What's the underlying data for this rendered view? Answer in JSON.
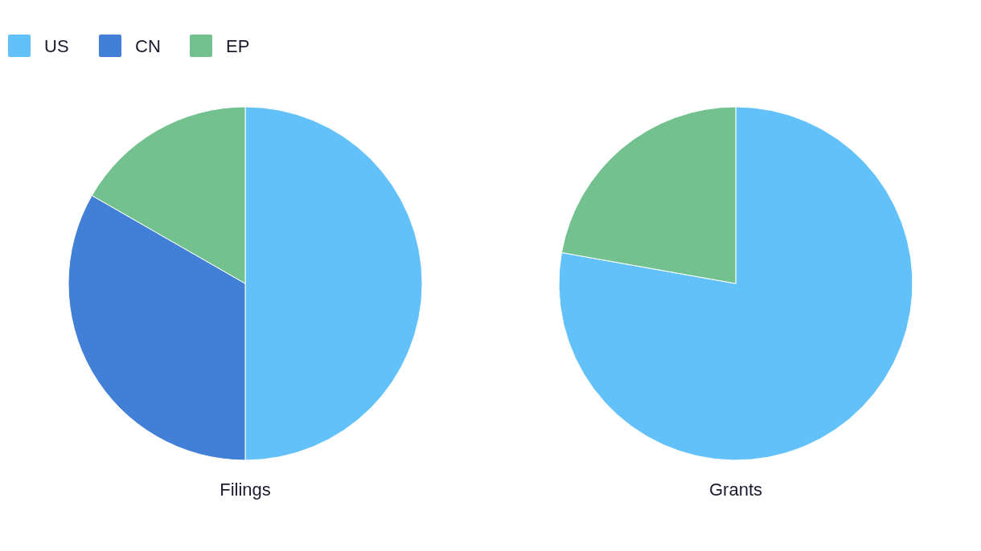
{
  "chart_data": [
    {
      "type": "pie",
      "title": "Filings",
      "categories": [
        "US",
        "CN",
        "EP"
      ],
      "values": [
        50,
        33.3,
        16.7
      ],
      "colors": [
        "#62c1f9",
        "#427fd6",
        "#73c18f"
      ],
      "legend": "top left"
    },
    {
      "type": "pie",
      "title": "Grants",
      "categories": [
        null,
        null
      ],
      "values": [
        77.8,
        22.2
      ],
      "colors": [
        "#62c1f9",
        "#73c18f"
      ]
    }
  ]
}
